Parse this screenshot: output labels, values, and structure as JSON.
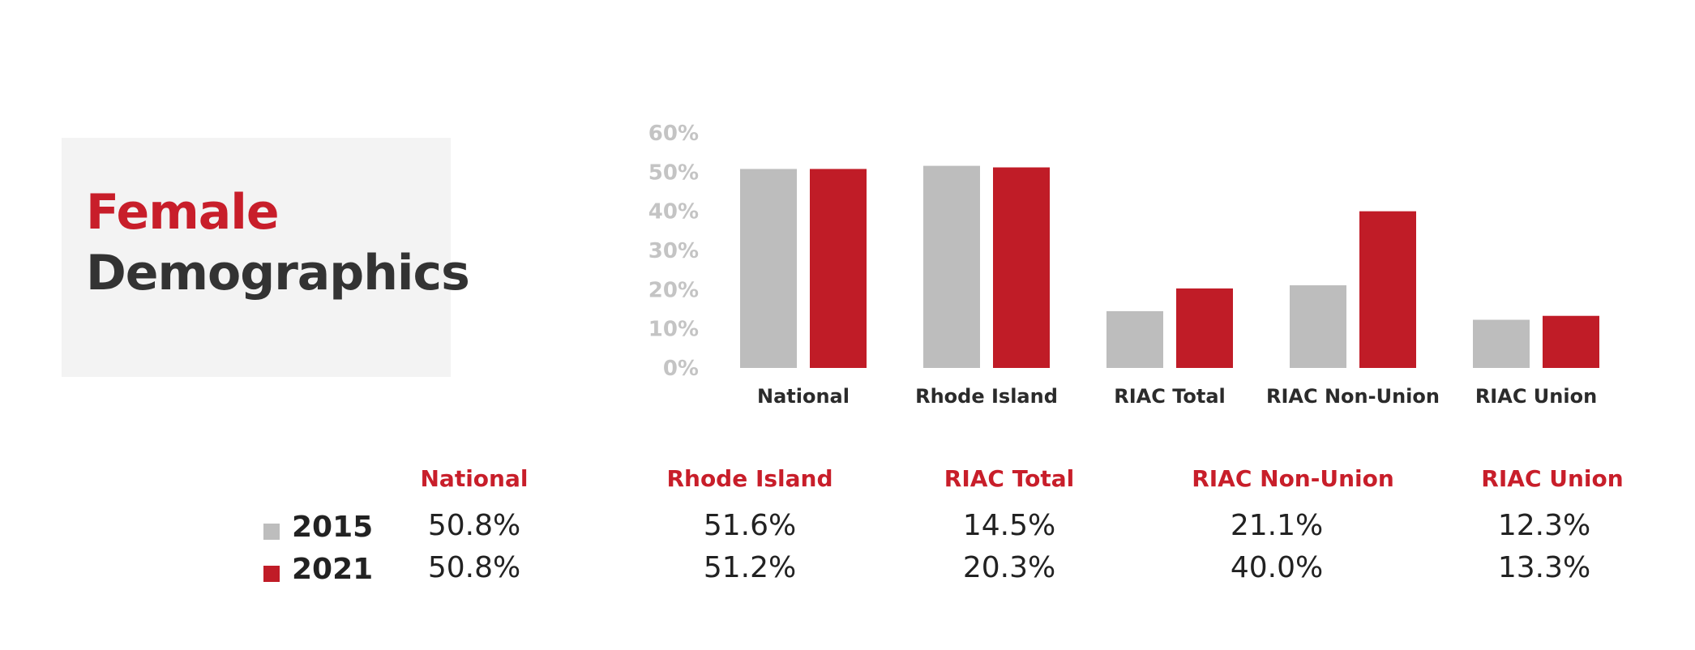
{
  "title": {
    "line1": "Female",
    "line2": "Demographics"
  },
  "colors": {
    "accent": "#c81e2a",
    "series_2015": "#bdbdbd",
    "series_2021": "#c01c27",
    "tick": "#c4c4c4",
    "title_dark": "#333333",
    "panel_bg": "#f3f3f3"
  },
  "chart_data": {
    "type": "bar",
    "categories": [
      "National",
      "Rhode Island",
      "RIAC Total",
      "RIAC Non-Union",
      "RIAC Union"
    ],
    "series": [
      {
        "name": "2015",
        "values": [
          50.8,
          51.6,
          14.5,
          21.1,
          12.3
        ]
      },
      {
        "name": "2021",
        "values": [
          50.8,
          51.2,
          20.3,
          40.0,
          13.3
        ]
      }
    ],
    "ylim": [
      0,
      60
    ],
    "yticks": [
      "0%",
      "10%",
      "20%",
      "30%",
      "40%",
      "50%",
      "60%"
    ],
    "grid": false,
    "legend_position": "bottom-left"
  },
  "table": {
    "headers": [
      "National",
      "Rhode Island",
      "RIAC Total",
      "RIAC Non-Union",
      "RIAC Union"
    ],
    "rows": [
      {
        "year": "2015",
        "values": [
          "50.8%",
          "51.6%",
          "14.5%",
          "21.1%",
          "12.3%"
        ]
      },
      {
        "year": "2021",
        "values": [
          "50.8%",
          "51.2%",
          "20.3%",
          "40.0%",
          "13.3%"
        ]
      }
    ]
  }
}
